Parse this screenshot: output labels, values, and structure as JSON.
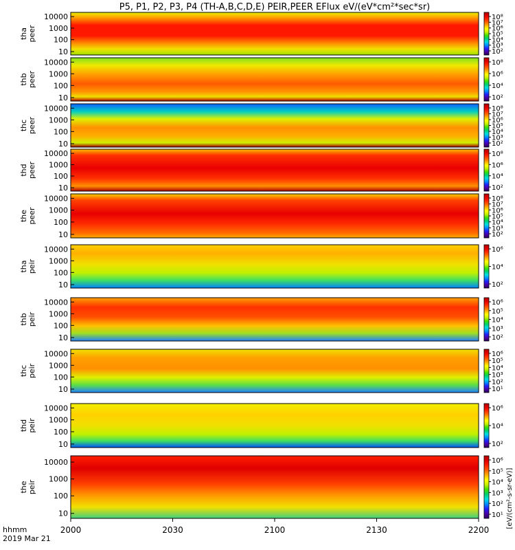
{
  "chart_data": {
    "type": "heatmap",
    "title": "P5, P1, P2, P3, P4 (TH-A,B,C,D,E) PEIR,PEER EFlux eV/(eV*cm²*sec*sr)",
    "x_ticks": [
      "2000",
      "2030",
      "2100",
      "2130",
      "2200"
    ],
    "x_label_line1": "hhmm",
    "x_label_line2": "2019 Mar 21",
    "yticks": [
      "10000",
      "1000",
      "100",
      "10"
    ],
    "colorbar_title": "[eV/(cm²-s-sr-eV)]",
    "panels": [
      {
        "probe": "tha",
        "species": "peer",
        "label1": "tha",
        "label2": "peer",
        "cb_ticks": [
          "10⁸",
          "10⁷",
          "10⁶",
          "10⁵",
          "10⁴",
          "10³",
          "10²"
        ]
      },
      {
        "probe": "thb",
        "species": "peer",
        "label1": "thb",
        "label2": "peer",
        "cb_ticks": [
          "10⁸",
          "10⁶",
          "10⁴",
          "10²"
        ]
      },
      {
        "probe": "thc",
        "species": "peer",
        "label1": "thc",
        "label2": "peer",
        "cb_ticks": [
          "10⁸",
          "10⁷",
          "10⁶",
          "10⁵",
          "10⁴",
          "10³",
          "10²"
        ]
      },
      {
        "probe": "thd",
        "species": "peer",
        "label1": "thd",
        "label2": "peer",
        "cb_ticks": [
          "10⁸",
          "10⁶",
          "10⁴",
          "10²"
        ]
      },
      {
        "probe": "the",
        "species": "peer",
        "label1": "the",
        "label2": "peer",
        "cb_ticks": [
          "10⁸",
          "10⁷",
          "10⁶",
          "10⁵",
          "10⁴",
          "10³",
          "10²"
        ]
      },
      {
        "probe": "tha",
        "species": "peir",
        "label1": "tha",
        "label2": "peir",
        "cb_ticks": [
          "10⁶",
          "10⁴",
          "10²"
        ]
      },
      {
        "probe": "thb",
        "species": "peir",
        "label1": "thb",
        "label2": "peir",
        "cb_ticks": [
          "10⁶",
          "10⁵",
          "10⁴",
          "10³",
          "10²"
        ]
      },
      {
        "probe": "thc",
        "species": "peir",
        "label1": "thc",
        "label2": "peir",
        "cb_ticks": [
          "10⁶",
          "10⁵",
          "10⁴",
          "10³",
          "10²",
          "10¹"
        ]
      },
      {
        "probe": "thd",
        "species": "peir",
        "label1": "thd",
        "label2": "peir",
        "cb_ticks": [
          "10⁶",
          "10⁴",
          "10²"
        ]
      },
      {
        "probe": "the",
        "species": "peir",
        "label1": "the",
        "label2": "peir",
        "cb_ticks": [
          "10⁶",
          "10⁵",
          "10⁴",
          "10³",
          "10²",
          "10¹"
        ]
      }
    ],
    "energy_range_eV": [
      7,
      30000
    ],
    "time_range": [
      "20:00",
      "22:00"
    ],
    "colormap": "rainbow (purple-blue-cyan-green-yellow-orange-red)"
  }
}
